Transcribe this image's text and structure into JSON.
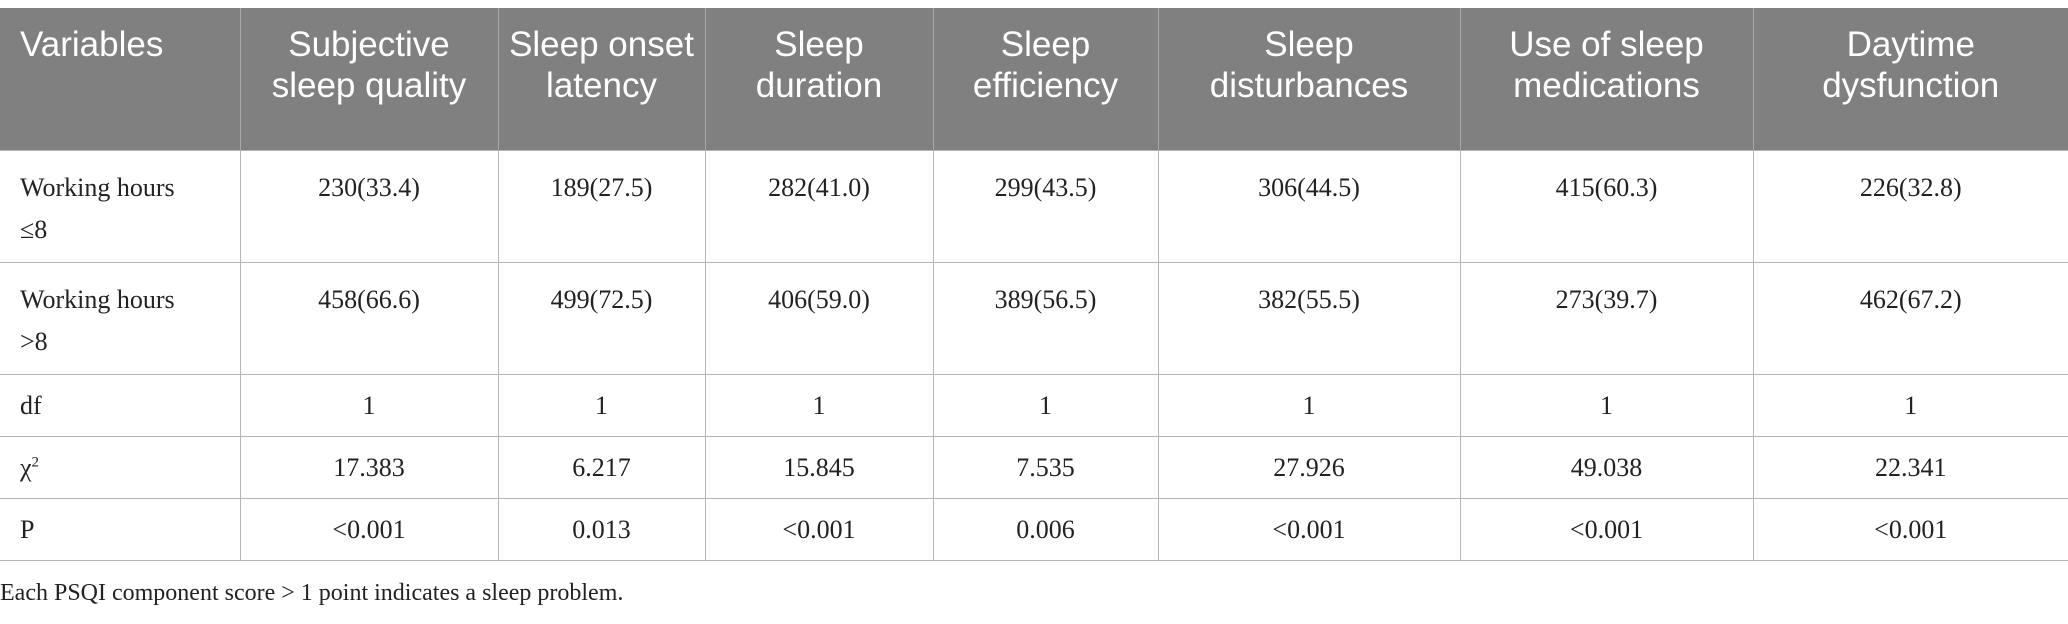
{
  "headers": [
    "Variables",
    "Subjective sleep quality",
    "Sleep onset latency",
    "Sleep duration",
    "Sleep efficiency",
    "Sleep disturbances",
    "Use of sleep medications",
    "Daytime dysfunction"
  ],
  "rows": [
    {
      "label_line1": "Working hours",
      "label_line2": "≤8",
      "cells": [
        "230(33.4)",
        "189(27.5)",
        "282(41.0)",
        "299(43.5)",
        "306(44.5)",
        "415(60.3)",
        "226(32.8)"
      ]
    },
    {
      "label_line1": "Working hours",
      "label_line2": ">8",
      "cells": [
        "458(66.6)",
        "499(72.5)",
        "406(59.0)",
        "389(56.5)",
        "382(55.5)",
        "273(39.7)",
        "462(67.2)"
      ]
    },
    {
      "label": "df",
      "cells": [
        "1",
        "1",
        "1",
        "1",
        "1",
        "1",
        "1"
      ]
    },
    {
      "label": "χ",
      "label_sup": "2",
      "cells": [
        "17.383",
        "6.217",
        "15.845",
        "7.535",
        "27.926",
        "49.038",
        "22.341"
      ]
    },
    {
      "label": "P",
      "cells": [
        "<0.001",
        "0.013",
        "<0.001",
        "0.006",
        "<0.001",
        "<0.001",
        "<0.001"
      ]
    }
  ],
  "footnote": "Each PSQI component score > 1 point indicates a sleep problem."
}
